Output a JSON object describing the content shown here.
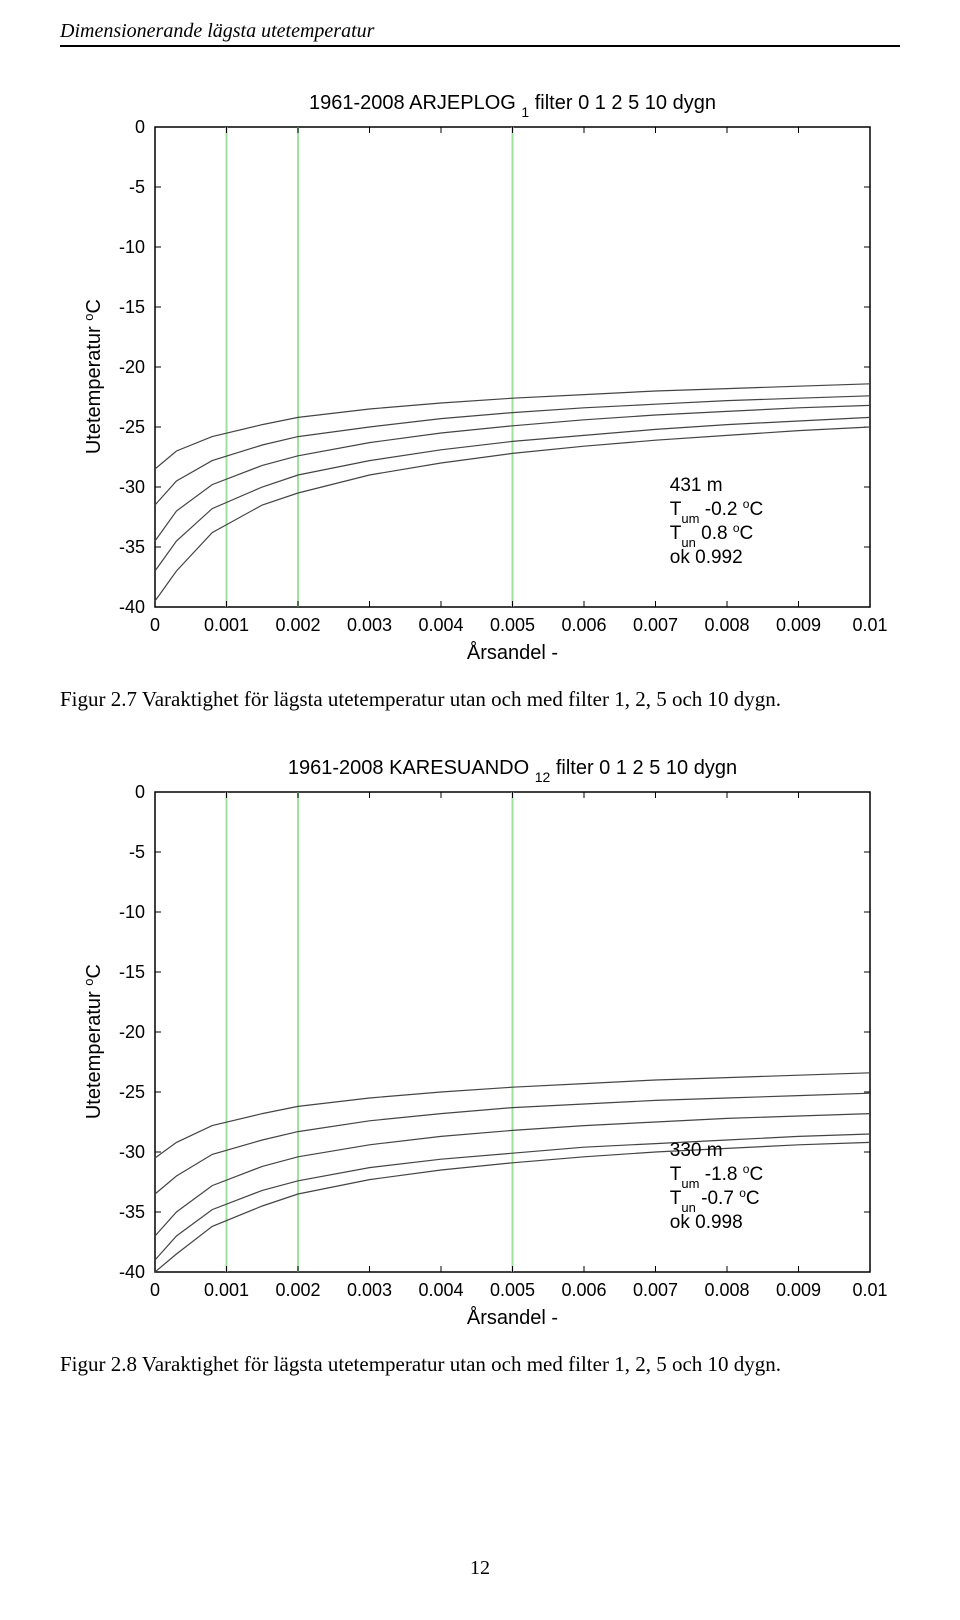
{
  "page": {
    "header": "Dimensionerande lägsta utetemperatur",
    "number": "12"
  },
  "chart1": {
    "type": "line",
    "title_left": "1961-2008  ARJEPLOG",
    "title_sub": "1",
    "title_right": "filter 0 1 2 5 10 dygn",
    "ylabel": "Utetemperatur  °C",
    "xlabel": "Årsandel  -",
    "ylim": [
      -40,
      0
    ],
    "yticks": [
      -40,
      -35,
      -30,
      -25,
      -20,
      -15,
      -10,
      -5,
      0
    ],
    "xlim": [
      0,
      0.01
    ],
    "xticks": [
      0,
      0.001,
      0.002,
      0.003,
      0.004,
      0.005,
      0.006,
      0.007,
      0.008,
      0.009,
      0.01
    ],
    "xtick_labels": [
      "0",
      "0.001",
      "0.002",
      "0.003",
      "0.004",
      "0.005",
      "0.006",
      "0.007",
      "0.008",
      "0.009",
      "0.01"
    ],
    "vertical_lines": [
      0.001,
      0.002,
      0.005
    ],
    "vline_color": "#9fe29f",
    "grid_color": "#bbbbbb",
    "axis_color": "#000000",
    "line_color": "#444444",
    "line_width": 1.2,
    "background_color": "#ffffff",
    "series": [
      {
        "name": "f0",
        "points": [
          [
            0,
            -39.5
          ],
          [
            0.0003,
            -37
          ],
          [
            0.0008,
            -33.8
          ],
          [
            0.0015,
            -31.5
          ],
          [
            0.002,
            -30.5
          ],
          [
            0.003,
            -29
          ],
          [
            0.004,
            -28
          ],
          [
            0.005,
            -27.2
          ],
          [
            0.006,
            -26.6
          ],
          [
            0.007,
            -26.1
          ],
          [
            0.008,
            -25.7
          ],
          [
            0.009,
            -25.3
          ],
          [
            0.01,
            -25
          ]
        ]
      },
      {
        "name": "f1",
        "points": [
          [
            0,
            -37
          ],
          [
            0.0003,
            -34.5
          ],
          [
            0.0008,
            -31.8
          ],
          [
            0.0015,
            -30
          ],
          [
            0.002,
            -29
          ],
          [
            0.003,
            -27.8
          ],
          [
            0.004,
            -26.9
          ],
          [
            0.005,
            -26.2
          ],
          [
            0.006,
            -25.7
          ],
          [
            0.007,
            -25.2
          ],
          [
            0.008,
            -24.8
          ],
          [
            0.009,
            -24.5
          ],
          [
            0.01,
            -24.2
          ]
        ]
      },
      {
        "name": "f2",
        "points": [
          [
            0,
            -34.5
          ],
          [
            0.0003,
            -32
          ],
          [
            0.0008,
            -29.8
          ],
          [
            0.0015,
            -28.2
          ],
          [
            0.002,
            -27.4
          ],
          [
            0.003,
            -26.3
          ],
          [
            0.004,
            -25.5
          ],
          [
            0.005,
            -24.9
          ],
          [
            0.006,
            -24.4
          ],
          [
            0.007,
            -24
          ],
          [
            0.008,
            -23.7
          ],
          [
            0.009,
            -23.4
          ],
          [
            0.01,
            -23.2
          ]
        ]
      },
      {
        "name": "f5",
        "points": [
          [
            0,
            -31.5
          ],
          [
            0.0003,
            -29.5
          ],
          [
            0.0008,
            -27.8
          ],
          [
            0.0015,
            -26.5
          ],
          [
            0.002,
            -25.8
          ],
          [
            0.003,
            -25
          ],
          [
            0.004,
            -24.3
          ],
          [
            0.005,
            -23.8
          ],
          [
            0.006,
            -23.4
          ],
          [
            0.007,
            -23.1
          ],
          [
            0.008,
            -22.8
          ],
          [
            0.009,
            -22.6
          ],
          [
            0.01,
            -22.4
          ]
        ]
      },
      {
        "name": "f10",
        "points": [
          [
            0,
            -28.5
          ],
          [
            0.0003,
            -27
          ],
          [
            0.0008,
            -25.8
          ],
          [
            0.0015,
            -24.8
          ],
          [
            0.002,
            -24.2
          ],
          [
            0.003,
            -23.5
          ],
          [
            0.004,
            -23
          ],
          [
            0.005,
            -22.6
          ],
          [
            0.006,
            -22.3
          ],
          [
            0.007,
            -22
          ],
          [
            0.008,
            -21.8
          ],
          [
            0.009,
            -21.6
          ],
          [
            0.01,
            -21.4
          ]
        ]
      }
    ],
    "annotations": {
      "line1": "431 m",
      "line2": "T",
      "line2_sub": "um",
      "line2_rest": " -0.2 ",
      "line2_sup": "o",
      "line2_end": "C",
      "line3": "T",
      "line3_sub": "un",
      "line3_rest": " 0.8 ",
      "line3_sup": "o",
      "line3_end": "C",
      "line4": "ok 0.992"
    },
    "caption": "Figur 2.7 Varaktighet för lägsta utetemperatur utan och med filter 1, 2, 5 och 10 dygn."
  },
  "chart2": {
    "type": "line",
    "title_left": "1961-2008  KARESUANDO",
    "title_sub": "12",
    "title_right": "filter 0 1 2 5 10 dygn",
    "ylabel": "Utetemperatur  °C",
    "xlabel": "Årsandel  -",
    "ylim": [
      -40,
      0
    ],
    "yticks": [
      -40,
      -35,
      -30,
      -25,
      -20,
      -15,
      -10,
      -5,
      0
    ],
    "xlim": [
      0,
      0.01
    ],
    "xticks": [
      0,
      0.001,
      0.002,
      0.003,
      0.004,
      0.005,
      0.006,
      0.007,
      0.008,
      0.009,
      0.01
    ],
    "xtick_labels": [
      "0",
      "0.001",
      "0.002",
      "0.003",
      "0.004",
      "0.005",
      "0.006",
      "0.007",
      "0.008",
      "0.009",
      "0.01"
    ],
    "vertical_lines": [
      0.001,
      0.002,
      0.005
    ],
    "vline_color": "#9fe29f",
    "grid_color": "#bbbbbb",
    "axis_color": "#000000",
    "line_color": "#444444",
    "line_width": 1.2,
    "background_color": "#ffffff",
    "series": [
      {
        "name": "f0",
        "points": [
          [
            0,
            -40
          ],
          [
            0.0003,
            -38.5
          ],
          [
            0.0008,
            -36.2
          ],
          [
            0.0015,
            -34.5
          ],
          [
            0.002,
            -33.5
          ],
          [
            0.003,
            -32.3
          ],
          [
            0.004,
            -31.5
          ],
          [
            0.005,
            -30.9
          ],
          [
            0.006,
            -30.4
          ],
          [
            0.007,
            -30
          ],
          [
            0.008,
            -29.7
          ],
          [
            0.009,
            -29.4
          ],
          [
            0.01,
            -29.2
          ]
        ]
      },
      {
        "name": "f1",
        "points": [
          [
            0,
            -39
          ],
          [
            0.0003,
            -37
          ],
          [
            0.0008,
            -34.8
          ],
          [
            0.0015,
            -33.2
          ],
          [
            0.002,
            -32.4
          ],
          [
            0.003,
            -31.3
          ],
          [
            0.004,
            -30.6
          ],
          [
            0.005,
            -30.1
          ],
          [
            0.006,
            -29.6
          ],
          [
            0.007,
            -29.3
          ],
          [
            0.008,
            -29
          ],
          [
            0.009,
            -28.7
          ],
          [
            0.01,
            -28.5
          ]
        ]
      },
      {
        "name": "f2",
        "points": [
          [
            0,
            -37
          ],
          [
            0.0003,
            -35
          ],
          [
            0.0008,
            -32.8
          ],
          [
            0.0015,
            -31.2
          ],
          [
            0.002,
            -30.4
          ],
          [
            0.003,
            -29.4
          ],
          [
            0.004,
            -28.7
          ],
          [
            0.005,
            -28.2
          ],
          [
            0.006,
            -27.8
          ],
          [
            0.007,
            -27.5
          ],
          [
            0.008,
            -27.2
          ],
          [
            0.009,
            -27
          ],
          [
            0.01,
            -26.8
          ]
        ]
      },
      {
        "name": "f5",
        "points": [
          [
            0,
            -33.5
          ],
          [
            0.0003,
            -32
          ],
          [
            0.0008,
            -30.2
          ],
          [
            0.0015,
            -29
          ],
          [
            0.002,
            -28.3
          ],
          [
            0.003,
            -27.4
          ],
          [
            0.004,
            -26.8
          ],
          [
            0.005,
            -26.3
          ],
          [
            0.006,
            -26
          ],
          [
            0.007,
            -25.7
          ],
          [
            0.008,
            -25.5
          ],
          [
            0.009,
            -25.3
          ],
          [
            0.01,
            -25.1
          ]
        ]
      },
      {
        "name": "f10",
        "points": [
          [
            0,
            -30.5
          ],
          [
            0.0003,
            -29.2
          ],
          [
            0.0008,
            -27.8
          ],
          [
            0.0015,
            -26.8
          ],
          [
            0.002,
            -26.2
          ],
          [
            0.003,
            -25.5
          ],
          [
            0.004,
            -25
          ],
          [
            0.005,
            -24.6
          ],
          [
            0.006,
            -24.3
          ],
          [
            0.007,
            -24
          ],
          [
            0.008,
            -23.8
          ],
          [
            0.009,
            -23.6
          ],
          [
            0.01,
            -23.4
          ]
        ]
      }
    ],
    "annotations": {
      "line1": "330 m",
      "line2": "T",
      "line2_sub": "um",
      "line2_rest": " -1.8 ",
      "line2_sup": "o",
      "line2_end": "C",
      "line3": "T",
      "line3_sub": "un",
      "line3_rest": " -0.7 ",
      "line3_sup": "o",
      "line3_end": "C",
      "line4": "ok 0.998"
    },
    "caption": "Figur 2.8 Varaktighet för lägsta utetemperatur utan och med filter 1, 2, 5 och 10 dygn."
  }
}
